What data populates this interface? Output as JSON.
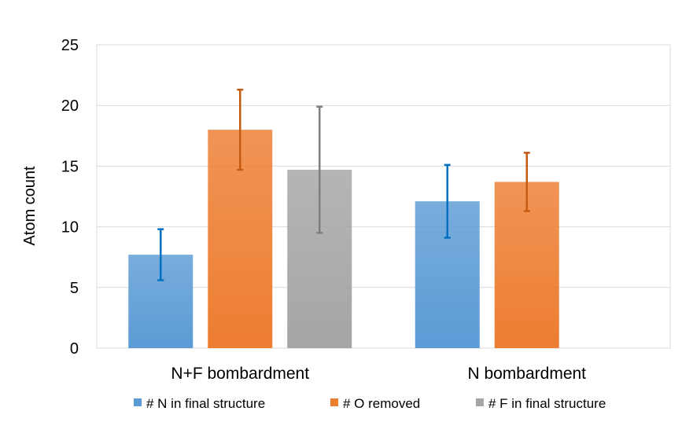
{
  "chart_data": {
    "type": "bar",
    "categories": [
      "N+F bombardment",
      "N bombardment"
    ],
    "series": [
      {
        "name": "# N in final structure",
        "values": [
          7.7,
          12.1
        ],
        "error": [
          2.1,
          3.0
        ],
        "color": "#5b9bd5",
        "error_color": "#0070c0"
      },
      {
        "name": "# O removed",
        "values": [
          18.0,
          13.7
        ],
        "error": [
          3.3,
          2.4
        ],
        "color": "#ed7d31",
        "error_color": "#c55a11"
      },
      {
        "name": "# F in final structure",
        "values": [
          14.7,
          null
        ],
        "error": [
          5.2,
          null
        ],
        "color": "#a5a5a5",
        "error_color": "#7f7f7f"
      }
    ],
    "title": "",
    "xlabel": "",
    "ylabel": "Atom count",
    "ylim": [
      0,
      25
    ],
    "yticks": [
      0,
      5,
      10,
      15,
      20,
      25
    ],
    "grid": true,
    "legend_position": "bottom"
  }
}
